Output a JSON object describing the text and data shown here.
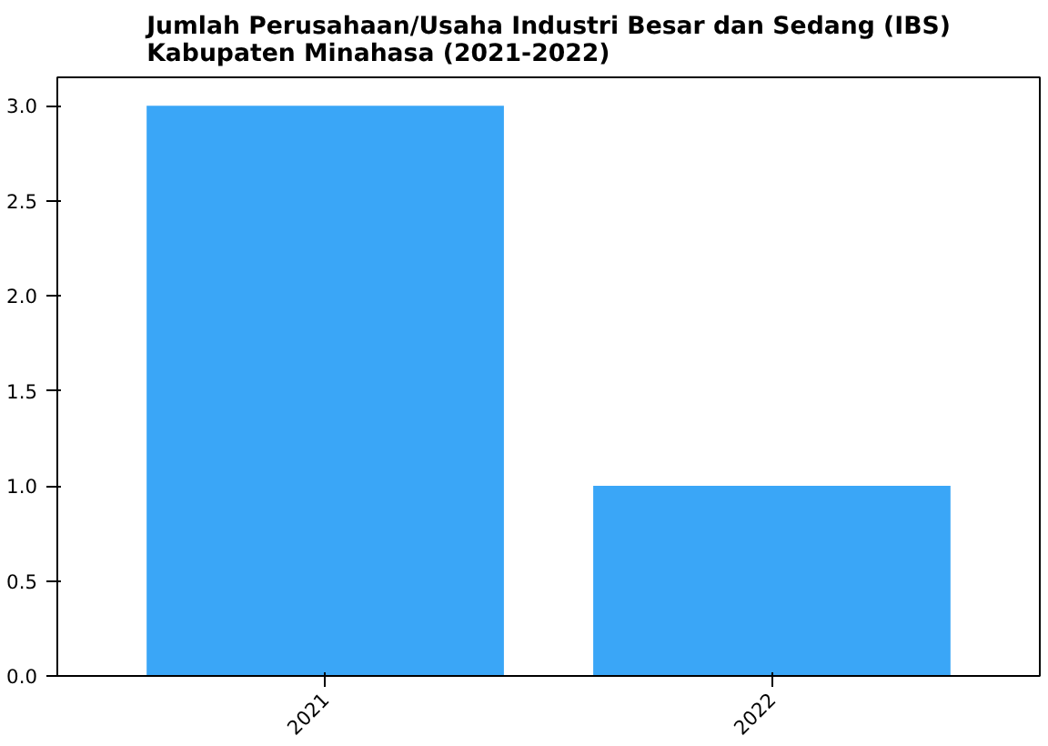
{
  "chart_data": {
    "type": "bar",
    "title": "Jumlah Perusahaan/Usaha Industri Besar dan Sedang (IBS)\nKabupaten Minahasa (2021-2022)",
    "categories": [
      "2021",
      "2022"
    ],
    "values": [
      3,
      1
    ],
    "color": "#3aa6f7",
    "ylim": [
      0,
      3.15
    ],
    "yticks": [
      {
        "value": 0,
        "label": "0.0"
      },
      {
        "value": 0.5,
        "label": "0.5"
      },
      {
        "value": 1,
        "label": "1.0"
      },
      {
        "value": 1.5,
        "label": "1.5"
      },
      {
        "value": 2,
        "label": "2.0"
      },
      {
        "value": 2.5,
        "label": "2.5"
      },
      {
        "value": 3,
        "label": "3.0"
      }
    ],
    "grid": false
  }
}
